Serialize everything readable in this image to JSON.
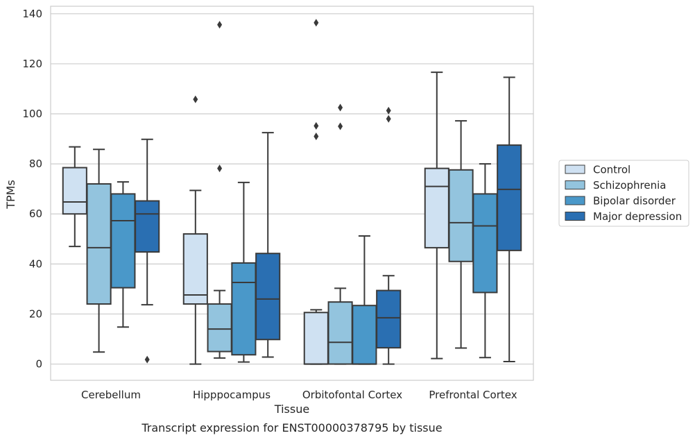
{
  "chart_data": {
    "type": "box",
    "xlabel": "Tissue",
    "ylabel": "TPMs",
    "caption": "Transcript expression for ENST00000378795 by tissue",
    "ylim": [
      -6.5,
      143
    ],
    "yticks": [
      0,
      20,
      40,
      60,
      80,
      100,
      120,
      140
    ],
    "grid": "horizontal",
    "legend_position": "right",
    "categories": [
      "Cerebellum",
      "Hipppocampus",
      "Orbitofontal Cortex",
      "Prefrontal Cortex"
    ],
    "series": [
      {
        "name": "Control",
        "color": "#cfe1f2",
        "boxes": [
          {
            "whisker_low": 47,
            "q1": 60,
            "median": 64.8,
            "q3": 78.5,
            "whisker_high": 86.8,
            "outliers": []
          },
          {
            "whisker_low": 0,
            "q1": 24,
            "median": 27.6,
            "q3": 52,
            "whisker_high": 69.4,
            "outliers": [
              105.8
            ]
          },
          {
            "whisker_low": 0,
            "q1": 0,
            "median": 0,
            "q3": 20.6,
            "whisker_high": 21.7,
            "outliers": [
              91,
              95.2,
              136.4
            ]
          },
          {
            "whisker_low": 2.2,
            "q1": 46.5,
            "median": 71,
            "q3": 78.2,
            "whisker_high": 116.6,
            "outliers": []
          }
        ]
      },
      {
        "name": "Schizophrenia",
        "color": "#93c4de",
        "boxes": [
          {
            "whisker_low": 4.8,
            "q1": 24,
            "median": 46.5,
            "q3": 72,
            "whisker_high": 85.8,
            "outliers": []
          },
          {
            "whisker_low": 2.4,
            "q1": 5,
            "median": 14,
            "q3": 24,
            "whisker_high": 29.4,
            "outliers": [
              78.2,
              135.6
            ]
          },
          {
            "whisker_low": 0,
            "q1": 0,
            "median": 8.7,
            "q3": 24.8,
            "whisker_high": 30.3,
            "outliers": [
              95,
              102.5
            ]
          },
          {
            "whisker_low": 6.4,
            "q1": 41,
            "median": 56.5,
            "q3": 77.6,
            "whisker_high": 97.2,
            "outliers": []
          }
        ]
      },
      {
        "name": "Bipolar disorder",
        "color": "#4a98c9",
        "boxes": [
          {
            "whisker_low": 14.8,
            "q1": 30.5,
            "median": 57.3,
            "q3": 68,
            "whisker_high": 72.8,
            "outliers": []
          },
          {
            "whisker_low": 0.8,
            "q1": 3.7,
            "median": 32.6,
            "q3": 40.4,
            "whisker_high": 72.6,
            "outliers": []
          },
          {
            "whisker_low": 0,
            "q1": 0,
            "median": 0,
            "q3": 23.4,
            "whisker_high": 51.2,
            "outliers": []
          },
          {
            "whisker_low": 2.6,
            "q1": 28.6,
            "median": 55.2,
            "q3": 68,
            "whisker_high": 80,
            "outliers": []
          }
        ]
      },
      {
        "name": "Major depression",
        "color": "#2a6fb2",
        "boxes": [
          {
            "whisker_low": 23.7,
            "q1": 44.8,
            "median": 60,
            "q3": 65.2,
            "whisker_high": 89.8,
            "outliers": [
              1.8
            ]
          },
          {
            "whisker_low": 2.8,
            "q1": 9.8,
            "median": 26,
            "q3": 44.2,
            "whisker_high": 92.5,
            "outliers": []
          },
          {
            "whisker_low": 0,
            "q1": 6.5,
            "median": 18.5,
            "q3": 29.4,
            "whisker_high": 35.3,
            "outliers": [
              98,
              101.3
            ]
          },
          {
            "whisker_low": 1,
            "q1": 45.4,
            "median": 69.8,
            "q3": 87.5,
            "whisker_high": 114.6,
            "outliers": []
          }
        ]
      }
    ]
  }
}
